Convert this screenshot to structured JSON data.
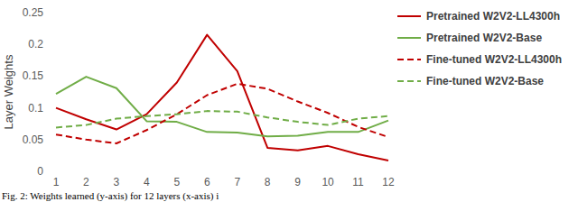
{
  "chart_data": {
    "type": "line",
    "y_label": "Layer Weights",
    "annotations": [
      "Fig. 2: Weights learned (y-axis) for 12 layers (x-axis) i"
    ],
    "categories": [
      "1",
      "2",
      "3",
      "4",
      "5",
      "6",
      "7",
      "8",
      "9",
      "10",
      "11",
      "12"
    ],
    "ylim": [
      0,
      0.25
    ],
    "yticks": [
      0,
      0.05,
      0.1,
      0.15,
      0.2,
      0.25
    ],
    "grid": false,
    "legend": "right",
    "series": [
      {
        "name": "Pretrained W2V2-LL4300h",
        "color": "#c00000",
        "line_style": "solid",
        "values": [
          0.1,
          0.082,
          0.066,
          0.09,
          0.14,
          0.215,
          0.158,
          0.037,
          0.033,
          0.04,
          0.027,
          0.017
        ]
      },
      {
        "name": "Pretrained W2V2-Base",
        "color": "#70ad47",
        "line_style": "solid",
        "values": [
          0.122,
          0.149,
          0.131,
          0.079,
          0.078,
          0.062,
          0.061,
          0.055,
          0.056,
          0.062,
          0.062,
          0.08
        ]
      },
      {
        "name": "Fine-tuned W2V2-LL4300h",
        "color": "#c00000",
        "line_style": "dashed",
        "values": [
          0.058,
          0.05,
          0.044,
          0.065,
          0.09,
          0.12,
          0.138,
          0.13,
          0.11,
          0.092,
          0.07,
          0.054
        ]
      },
      {
        "name": "Fine-tuned W2V2-Base",
        "color": "#70ad47",
        "line_style": "dashed",
        "values": [
          0.069,
          0.073,
          0.083,
          0.087,
          0.09,
          0.095,
          0.094,
          0.085,
          0.078,
          0.073,
          0.083,
          0.087
        ]
      }
    ]
  }
}
